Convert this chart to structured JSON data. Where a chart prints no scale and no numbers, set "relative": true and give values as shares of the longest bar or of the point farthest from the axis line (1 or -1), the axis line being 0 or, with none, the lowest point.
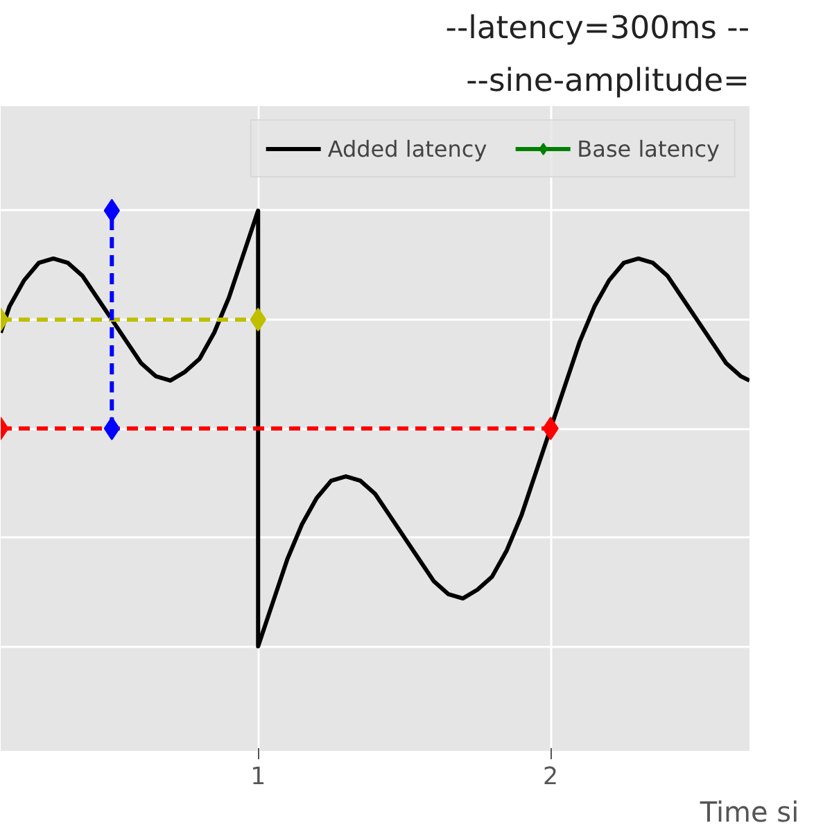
{
  "chart_data": {
    "type": "line",
    "title": "--latency=300ms --",
    "subtitle": "--sine-amplitude=",
    "xlabel": "Time si",
    "relative": true,
    "xlim": [
      0.12,
      2.68
    ],
    "xticks": [
      1,
      2
    ],
    "tick_labels": "x",
    "grid": true,
    "legend": "top right",
    "line_style": "solid",
    "marker": "none",
    "series": [
      {
        "name": "Added latency",
        "color": "#000000",
        "x": [
          0.12,
          0.15,
          0.2,
          0.25,
          0.3,
          0.35,
          0.4,
          0.45,
          0.5,
          0.55,
          0.6,
          0.65,
          0.7,
          0.75,
          0.8,
          0.85,
          0.9,
          0.95,
          1.0,
          1.0,
          1.05,
          1.1,
          1.15,
          1.2,
          1.25,
          1.3,
          1.35,
          1.4,
          1.45,
          1.5,
          1.55,
          1.6,
          1.65,
          1.7,
          1.75,
          1.8,
          1.85,
          1.9,
          1.95,
          2.0,
          2.05,
          2.1,
          2.15,
          2.2,
          2.25,
          2.3,
          2.35,
          2.4,
          2.45,
          2.5,
          2.55,
          2.6,
          2.65,
          2.68
        ],
        "values": [
          0.72,
          0.78,
          0.84,
          0.88,
          0.89,
          0.88,
          0.85,
          0.8,
          0.75,
          0.7,
          0.65,
          0.62,
          0.61,
          0.63,
          0.66,
          0.72,
          0.8,
          0.9,
          1.0,
          0.0,
          0.1,
          0.2,
          0.28,
          0.34,
          0.38,
          0.39,
          0.38,
          0.35,
          0.3,
          0.25,
          0.2,
          0.15,
          0.12,
          0.11,
          0.13,
          0.16,
          0.22,
          0.3,
          0.4,
          0.5,
          0.6,
          0.7,
          0.78,
          0.84,
          0.88,
          0.89,
          0.88,
          0.85,
          0.8,
          0.75,
          0.7,
          0.65,
          0.62,
          0.61
        ]
      },
      {
        "name": "Base latency",
        "color": "#008000",
        "marker": "diamond"
      },
      {
        "color": "#ff0000",
        "marker": "diamond",
        "line_style": "dashed",
        "x": [
          0.12,
          2.0
        ],
        "values": [
          0.5,
          0.5
        ]
      },
      {
        "color": "#bfbf00",
        "marker": "diamond",
        "line_style": "dashed",
        "x": [
          0.12,
          1.0
        ],
        "values": [
          0.75,
          0.75
        ]
      },
      {
        "color": "#0000ff",
        "marker": "diamond",
        "line_style": "dashed",
        "x": [
          0.5,
          0.5
        ],
        "values": [
          0.5,
          1.0
        ]
      }
    ]
  }
}
